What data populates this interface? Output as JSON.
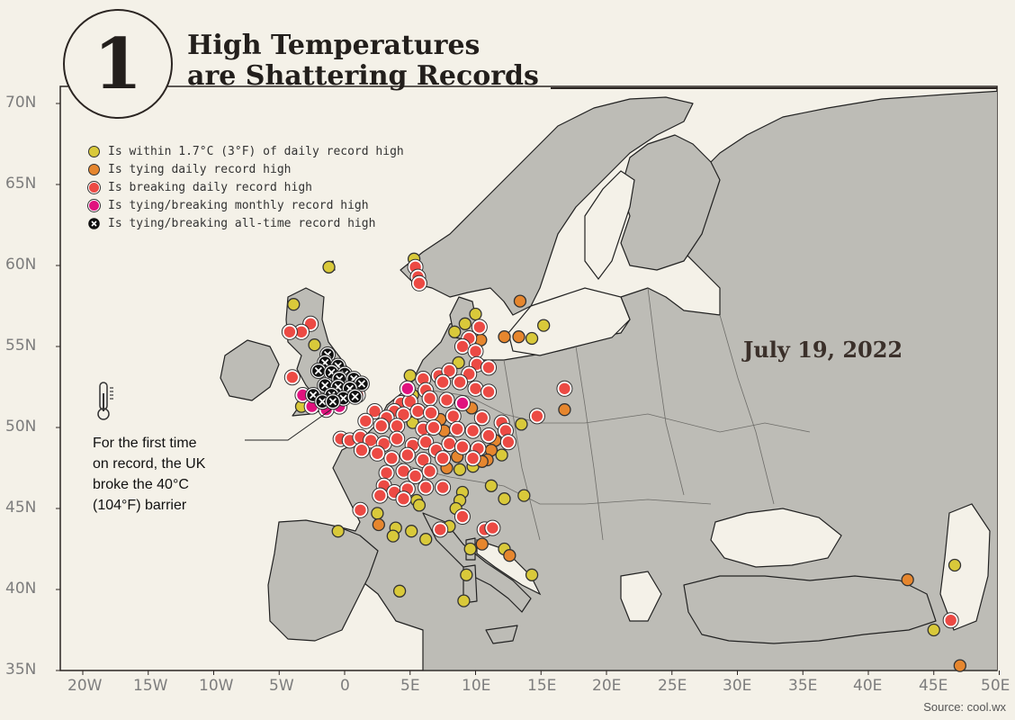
{
  "header": {
    "number": "1",
    "title_line1": "High Temperatures",
    "title_line2": "are Shattering Records"
  },
  "date_label": "July 19, 2022",
  "annotation": {
    "line1": "For the first time",
    "line2": "on record, the UK",
    "line3": "broke the 40°C",
    "line4": "(104°F) barrier"
  },
  "source": "Source: cool.wx",
  "legend": [
    {
      "label": "Is within 1.7°C (3°F) of daily record high",
      "color": "#d9c93a",
      "kind": "within"
    },
    {
      "label": "Is tying daily record high",
      "color": "#e6862e",
      "kind": "tie"
    },
    {
      "label": "Is breaking daily record high",
      "color": "#ec4a44",
      "kind": "break"
    },
    {
      "label": "Is tying/breaking monthly record high",
      "color": "#e0127e",
      "kind": "monthly"
    },
    {
      "label": "Is tying/breaking all-time record high",
      "color": "#111111",
      "kind": "alltime"
    }
  ],
  "colors": {
    "land": "#bdbcb6",
    "water": "#f4f1e8",
    "within": "#d9c93a",
    "tie": "#e6862e",
    "break": "#ec4a44",
    "monthly": "#e0127e",
    "alltime": "#111111"
  },
  "axes": {
    "lat_ticks": [
      "70N",
      "65N",
      "60N",
      "55N",
      "50N",
      "45N",
      "40N",
      "35N"
    ],
    "lon_ticks": [
      "20W",
      "15W",
      "10W",
      "5W",
      "0",
      "5E",
      "10E",
      "15E",
      "20E",
      "25E",
      "30E",
      "35E",
      "40E",
      "45E",
      "50E"
    ],
    "lon_range": [
      -20,
      50
    ],
    "lat_range": [
      35,
      70
    ]
  },
  "stations": [
    {
      "lon": -1.2,
      "lat": 59.9,
      "t": "within"
    },
    {
      "lon": -3.9,
      "lat": 57.6,
      "t": "within"
    },
    {
      "lon": -2.6,
      "lat": 56.4,
      "t": "break"
    },
    {
      "lon": -3.3,
      "lat": 55.9,
      "t": "break"
    },
    {
      "lon": -4.2,
      "lat": 55.9,
      "t": "break"
    },
    {
      "lon": -2.3,
      "lat": 55.1,
      "t": "within"
    },
    {
      "lon": -1.3,
      "lat": 54.5,
      "t": "alltime"
    },
    {
      "lon": -1.5,
      "lat": 54.0,
      "t": "alltime"
    },
    {
      "lon": -0.5,
      "lat": 53.8,
      "t": "alltime"
    },
    {
      "lon": -2.0,
      "lat": 53.5,
      "t": "alltime"
    },
    {
      "lon": -1.0,
      "lat": 53.4,
      "t": "alltime"
    },
    {
      "lon": 0.0,
      "lat": 53.3,
      "t": "alltime"
    },
    {
      "lon": -0.4,
      "lat": 53.0,
      "t": "alltime"
    },
    {
      "lon": 0.7,
      "lat": 53.0,
      "t": "alltime"
    },
    {
      "lon": 1.3,
      "lat": 52.7,
      "t": "alltime"
    },
    {
      "lon": -1.5,
      "lat": 52.6,
      "t": "alltime"
    },
    {
      "lon": -0.5,
      "lat": 52.5,
      "t": "alltime"
    },
    {
      "lon": 0.4,
      "lat": 52.4,
      "t": "alltime"
    },
    {
      "lon": -2.4,
      "lat": 52.0,
      "t": "alltime"
    },
    {
      "lon": -1.0,
      "lat": 52.0,
      "t": "alltime"
    },
    {
      "lon": -0.1,
      "lat": 51.8,
      "t": "alltime"
    },
    {
      "lon": 0.8,
      "lat": 51.9,
      "t": "alltime"
    },
    {
      "lon": -1.7,
      "lat": 51.6,
      "t": "alltime"
    },
    {
      "lon": -0.9,
      "lat": 51.6,
      "t": "alltime"
    },
    {
      "lon": -3.2,
      "lat": 52.0,
      "t": "monthly"
    },
    {
      "lon": -2.5,
      "lat": 51.3,
      "t": "monthly"
    },
    {
      "lon": -0.4,
      "lat": 51.3,
      "t": "monthly"
    },
    {
      "lon": -1.4,
      "lat": 51.1,
      "t": "monthly"
    },
    {
      "lon": -3.3,
      "lat": 51.3,
      "t": "within"
    },
    {
      "lon": -4.0,
      "lat": 53.1,
      "t": "break"
    },
    {
      "lon": 1.0,
      "lat": 52.0,
      "t": "break"
    },
    {
      "lon": 5.3,
      "lat": 60.4,
      "t": "within"
    },
    {
      "lon": 5.4,
      "lat": 59.9,
      "t": "break"
    },
    {
      "lon": 5.6,
      "lat": 59.3,
      "t": "break"
    },
    {
      "lon": 5.7,
      "lat": 58.9,
      "t": "break"
    },
    {
      "lon": 13.4,
      "lat": 57.8,
      "t": "tie"
    },
    {
      "lon": 15.2,
      "lat": 56.3,
      "t": "within"
    },
    {
      "lon": 10.0,
      "lat": 57.0,
      "t": "within"
    },
    {
      "lon": 9.2,
      "lat": 56.4,
      "t": "within"
    },
    {
      "lon": 10.3,
      "lat": 56.2,
      "t": "break"
    },
    {
      "lon": 8.4,
      "lat": 55.9,
      "t": "within"
    },
    {
      "lon": 9.5,
      "lat": 55.5,
      "t": "break"
    },
    {
      "lon": 10.4,
      "lat": 55.4,
      "t": "tie"
    },
    {
      "lon": 12.2,
      "lat": 55.6,
      "t": "tie"
    },
    {
      "lon": 13.3,
      "lat": 55.6,
      "t": "tie"
    },
    {
      "lon": 14.3,
      "lat": 55.5,
      "t": "within"
    },
    {
      "lon": 9.0,
      "lat": 55.0,
      "t": "break"
    },
    {
      "lon": 10.0,
      "lat": 54.7,
      "t": "break"
    },
    {
      "lon": 8.7,
      "lat": 54.0,
      "t": "within"
    },
    {
      "lon": 10.1,
      "lat": 53.9,
      "t": "break"
    },
    {
      "lon": 11.0,
      "lat": 53.7,
      "t": "break"
    },
    {
      "lon": 5.0,
      "lat": 53.2,
      "t": "within"
    },
    {
      "lon": 6.0,
      "lat": 53.0,
      "t": "break"
    },
    {
      "lon": 7.2,
      "lat": 53.2,
      "t": "break"
    },
    {
      "lon": 8.0,
      "lat": 53.5,
      "t": "break"
    },
    {
      "lon": 9.5,
      "lat": 53.3,
      "t": "break"
    },
    {
      "lon": 4.8,
      "lat": 52.4,
      "t": "monthly"
    },
    {
      "lon": 5.2,
      "lat": 52.0,
      "t": "within"
    },
    {
      "lon": 6.2,
      "lat": 52.3,
      "t": "break"
    },
    {
      "lon": 7.5,
      "lat": 52.8,
      "t": "break"
    },
    {
      "lon": 8.8,
      "lat": 52.8,
      "t": "break"
    },
    {
      "lon": 10.0,
      "lat": 52.4,
      "t": "break"
    },
    {
      "lon": 11.0,
      "lat": 52.2,
      "t": "break"
    },
    {
      "lon": 4.3,
      "lat": 51.5,
      "t": "break"
    },
    {
      "lon": 5.0,
      "lat": 51.6,
      "t": "break"
    },
    {
      "lon": 6.5,
      "lat": 51.8,
      "t": "break"
    },
    {
      "lon": 7.8,
      "lat": 51.7,
      "t": "break"
    },
    {
      "lon": 9.0,
      "lat": 51.5,
      "t": "monthly"
    },
    {
      "lon": 9.7,
      "lat": 51.2,
      "t": "tie"
    },
    {
      "lon": 3.8,
      "lat": 51.0,
      "t": "break"
    },
    {
      "lon": 4.5,
      "lat": 50.8,
      "t": "break"
    },
    {
      "lon": 5.6,
      "lat": 51.0,
      "t": "break"
    },
    {
      "lon": 6.6,
      "lat": 50.9,
      "t": "break"
    },
    {
      "lon": 7.3,
      "lat": 50.5,
      "t": "tie"
    },
    {
      "lon": 8.3,
      "lat": 50.7,
      "t": "break"
    },
    {
      "lon": 10.5,
      "lat": 50.6,
      "t": "break"
    },
    {
      "lon": 12.0,
      "lat": 50.3,
      "t": "break"
    },
    {
      "lon": 13.5,
      "lat": 50.2,
      "t": "within"
    },
    {
      "lon": 14.7,
      "lat": 50.7,
      "t": "break"
    },
    {
      "lon": 2.3,
      "lat": 51.0,
      "t": "break"
    },
    {
      "lon": 3.2,
      "lat": 50.6,
      "t": "break"
    },
    {
      "lon": 1.6,
      "lat": 50.4,
      "t": "break"
    },
    {
      "lon": 2.8,
      "lat": 50.1,
      "t": "break"
    },
    {
      "lon": 4.0,
      "lat": 50.1,
      "t": "break"
    },
    {
      "lon": 5.2,
      "lat": 50.3,
      "t": "within"
    },
    {
      "lon": 6.0,
      "lat": 49.9,
      "t": "break"
    },
    {
      "lon": 6.8,
      "lat": 50.0,
      "t": "break"
    },
    {
      "lon": 7.6,
      "lat": 49.8,
      "t": "tie"
    },
    {
      "lon": 8.6,
      "lat": 49.9,
      "t": "break"
    },
    {
      "lon": 9.8,
      "lat": 49.8,
      "t": "break"
    },
    {
      "lon": 11.0,
      "lat": 49.5,
      "t": "break"
    },
    {
      "lon": 12.3,
      "lat": 49.8,
      "t": "break"
    },
    {
      "lon": 11.5,
      "lat": 49.2,
      "t": "tie"
    },
    {
      "lon": 12.5,
      "lat": 49.1,
      "t": "break"
    },
    {
      "lon": -0.3,
      "lat": 49.3,
      "t": "break"
    },
    {
      "lon": 0.4,
      "lat": 49.2,
      "t": "break"
    },
    {
      "lon": 1.2,
      "lat": 49.4,
      "t": "break"
    },
    {
      "lon": 2.0,
      "lat": 49.2,
      "t": "break"
    },
    {
      "lon": 3.0,
      "lat": 49.0,
      "t": "break"
    },
    {
      "lon": 4.0,
      "lat": 49.3,
      "t": "break"
    },
    {
      "lon": 5.2,
      "lat": 48.9,
      "t": "break"
    },
    {
      "lon": 6.2,
      "lat": 49.1,
      "t": "break"
    },
    {
      "lon": 7.0,
      "lat": 48.6,
      "t": "break"
    },
    {
      "lon": 8.0,
      "lat": 49.0,
      "t": "break"
    },
    {
      "lon": 9.0,
      "lat": 48.8,
      "t": "break"
    },
    {
      "lon": 10.2,
      "lat": 48.7,
      "t": "break"
    },
    {
      "lon": 11.2,
      "lat": 48.6,
      "t": "tie"
    },
    {
      "lon": 12.0,
      "lat": 48.3,
      "t": "within"
    },
    {
      "lon": 1.3,
      "lat": 48.6,
      "t": "break"
    },
    {
      "lon": 2.5,
      "lat": 48.4,
      "t": "break"
    },
    {
      "lon": 3.6,
      "lat": 48.1,
      "t": "break"
    },
    {
      "lon": 4.8,
      "lat": 48.3,
      "t": "break"
    },
    {
      "lon": 6.0,
      "lat": 48.0,
      "t": "break"
    },
    {
      "lon": 7.5,
      "lat": 48.1,
      "t": "break"
    },
    {
      "lon": 8.6,
      "lat": 48.2,
      "t": "tie"
    },
    {
      "lon": 9.8,
      "lat": 48.1,
      "t": "break"
    },
    {
      "lon": 10.9,
      "lat": 48.0,
      "t": "tie"
    },
    {
      "lon": 3.2,
      "lat": 47.2,
      "t": "break"
    },
    {
      "lon": 4.5,
      "lat": 47.3,
      "t": "break"
    },
    {
      "lon": 5.4,
      "lat": 47.0,
      "t": "break"
    },
    {
      "lon": 6.5,
      "lat": 47.3,
      "t": "break"
    },
    {
      "lon": 7.8,
      "lat": 47.5,
      "t": "tie"
    },
    {
      "lon": 8.8,
      "lat": 47.4,
      "t": "within"
    },
    {
      "lon": 9.8,
      "lat": 47.6,
      "t": "within"
    },
    {
      "lon": 10.5,
      "lat": 47.9,
      "t": "tie"
    },
    {
      "lon": 3.0,
      "lat": 46.4,
      "t": "break"
    },
    {
      "lon": 3.8,
      "lat": 46.0,
      "t": "break"
    },
    {
      "lon": 4.8,
      "lat": 46.2,
      "t": "break"
    },
    {
      "lon": 6.2,
      "lat": 46.3,
      "t": "break"
    },
    {
      "lon": 7.5,
      "lat": 46.3,
      "t": "break"
    },
    {
      "lon": 9.0,
      "lat": 46.0,
      "t": "within"
    },
    {
      "lon": 2.7,
      "lat": 45.8,
      "t": "break"
    },
    {
      "lon": 4.5,
      "lat": 45.6,
      "t": "break"
    },
    {
      "lon": 5.5,
      "lat": 45.5,
      "t": "within"
    },
    {
      "lon": 8.8,
      "lat": 45.5,
      "t": "within"
    },
    {
      "lon": 11.2,
      "lat": 46.4,
      "t": "within"
    },
    {
      "lon": 12.2,
      "lat": 45.6,
      "t": "within"
    },
    {
      "lon": 13.7,
      "lat": 45.8,
      "t": "within"
    },
    {
      "lon": 1.2,
      "lat": 44.9,
      "t": "break"
    },
    {
      "lon": 2.5,
      "lat": 44.7,
      "t": "within"
    },
    {
      "lon": 5.7,
      "lat": 45.2,
      "t": "within"
    },
    {
      "lon": 8.5,
      "lat": 45.0,
      "t": "within"
    },
    {
      "lon": 9.0,
      "lat": 44.5,
      "t": "break"
    },
    {
      "lon": -0.5,
      "lat": 43.6,
      "t": "within"
    },
    {
      "lon": 2.6,
      "lat": 44.0,
      "t": "tie"
    },
    {
      "lon": 3.9,
      "lat": 43.8,
      "t": "within"
    },
    {
      "lon": 5.1,
      "lat": 43.6,
      "t": "within"
    },
    {
      "lon": 6.2,
      "lat": 43.1,
      "t": "within"
    },
    {
      "lon": 7.3,
      "lat": 43.7,
      "t": "break"
    },
    {
      "lon": 8.0,
      "lat": 43.9,
      "t": "within"
    },
    {
      "lon": 10.7,
      "lat": 43.7,
      "t": "break"
    },
    {
      "lon": 11.3,
      "lat": 43.8,
      "t": "break"
    },
    {
      "lon": 9.6,
      "lat": 42.5,
      "t": "within"
    },
    {
      "lon": 10.5,
      "lat": 42.8,
      "t": "tie"
    },
    {
      "lon": 12.2,
      "lat": 42.5,
      "t": "within"
    },
    {
      "lon": 12.6,
      "lat": 42.1,
      "t": "tie"
    },
    {
      "lon": 14.3,
      "lat": 40.9,
      "t": "within"
    },
    {
      "lon": 3.7,
      "lat": 43.3,
      "t": "within"
    },
    {
      "lon": 9.3,
      "lat": 40.9,
      "t": "within"
    },
    {
      "lon": 9.1,
      "lat": 39.3,
      "t": "within"
    },
    {
      "lon": 4.2,
      "lat": 39.9,
      "t": "within"
    },
    {
      "lon": 16.8,
      "lat": 52.4,
      "t": "break"
    },
    {
      "lon": 16.8,
      "lat": 51.1,
      "t": "tie"
    },
    {
      "lon": 43.0,
      "lat": 40.6,
      "t": "tie"
    },
    {
      "lon": 46.6,
      "lat": 41.5,
      "t": "within"
    },
    {
      "lon": 46.3,
      "lat": 38.1,
      "t": "break"
    },
    {
      "lon": 45.0,
      "lat": 37.5,
      "t": "within"
    },
    {
      "lon": 47.0,
      "lat": 35.3,
      "t": "tie"
    }
  ]
}
